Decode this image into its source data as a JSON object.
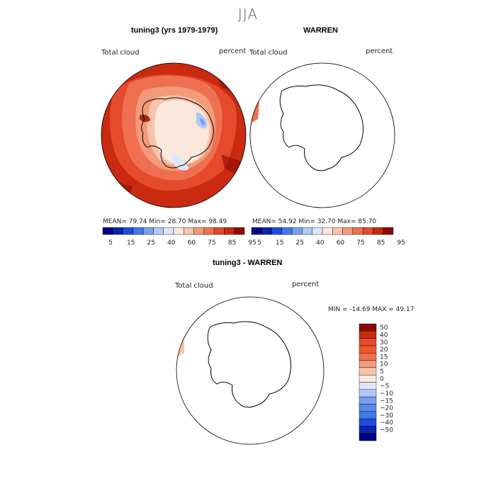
{
  "season": "JJA",
  "panels": [
    {
      "title": "tuning3 (yrs 1979-1979)",
      "variable": "Total cloud",
      "units": "percent",
      "stats": "MEAN=   79.74   Min=   28.70   Max=   98.49"
    },
    {
      "title": "WARREN",
      "variable": "Total cloud",
      "units": "percent",
      "stats": "MEAN=   54.92   Min=   32.70   Max=   85.70"
    },
    {
      "title": "tuning3 - WARREN",
      "variable": "Total cloud",
      "units": "percent",
      "stats": "MIN = -14.69  MAX =   49.17"
    }
  ],
  "colorbar_abs": {
    "tick_labels": [
      "5",
      "15",
      "25",
      "40",
      "60",
      "75",
      "85",
      "95"
    ],
    "colors": [
      "#000080",
      "#0a23b0",
      "#1d4ddd",
      "#3f78ea",
      "#789ff0",
      "#b1c9f5",
      "#dce7fb",
      "#fbe7dc",
      "#f8c3a9",
      "#f39a78",
      "#ee7050",
      "#e54a2c",
      "#c92a10",
      "#8e0a00"
    ]
  },
  "colorbar_diff": {
    "tick_labels": [
      "50",
      "40",
      "30",
      "20",
      "15",
      "10",
      "5",
      "0",
      "−5",
      "−10",
      "−15",
      "−20",
      "−30",
      "−40",
      "−50"
    ],
    "colors": [
      "#8e0a00",
      "#c92a10",
      "#e54a2c",
      "#f0552d",
      "#ee7050",
      "#f39a78",
      "#f8c3a9",
      "#fbe7dc",
      "#dce7fb",
      "#b1c9f5",
      "#789ff0",
      "#5a8ae8",
      "#3f78ea",
      "#1d4ddd",
      "#0a23b0",
      "#000080"
    ]
  },
  "chart_data": [
    {
      "type": "heatmap",
      "title": "tuning3 (yrs 1979-1979)",
      "variable": "Total cloud",
      "units": "percent",
      "projection": "south polar stereographic",
      "mean": 79.74,
      "min": 28.7,
      "max": 98.49,
      "levels": [
        5,
        15,
        25,
        40,
        60,
        75,
        85,
        95
      ]
    },
    {
      "type": "heatmap",
      "title": "WARREN",
      "variable": "Total cloud",
      "units": "percent",
      "projection": "south polar stereographic",
      "mean": 54.92,
      "min": 32.7,
      "max": 85.7,
      "levels": [
        5,
        15,
        25,
        40,
        60,
        75,
        85,
        95
      ]
    },
    {
      "type": "heatmap",
      "title": "tuning3 - WARREN",
      "variable": "Total cloud",
      "units": "percent",
      "projection": "south polar stereographic",
      "min": -14.69,
      "max": 49.17,
      "levels": [
        -50,
        -40,
        -30,
        -20,
        -15,
        -10,
        -5,
        0,
        5,
        10,
        15,
        20,
        30,
        40,
        50
      ]
    }
  ]
}
